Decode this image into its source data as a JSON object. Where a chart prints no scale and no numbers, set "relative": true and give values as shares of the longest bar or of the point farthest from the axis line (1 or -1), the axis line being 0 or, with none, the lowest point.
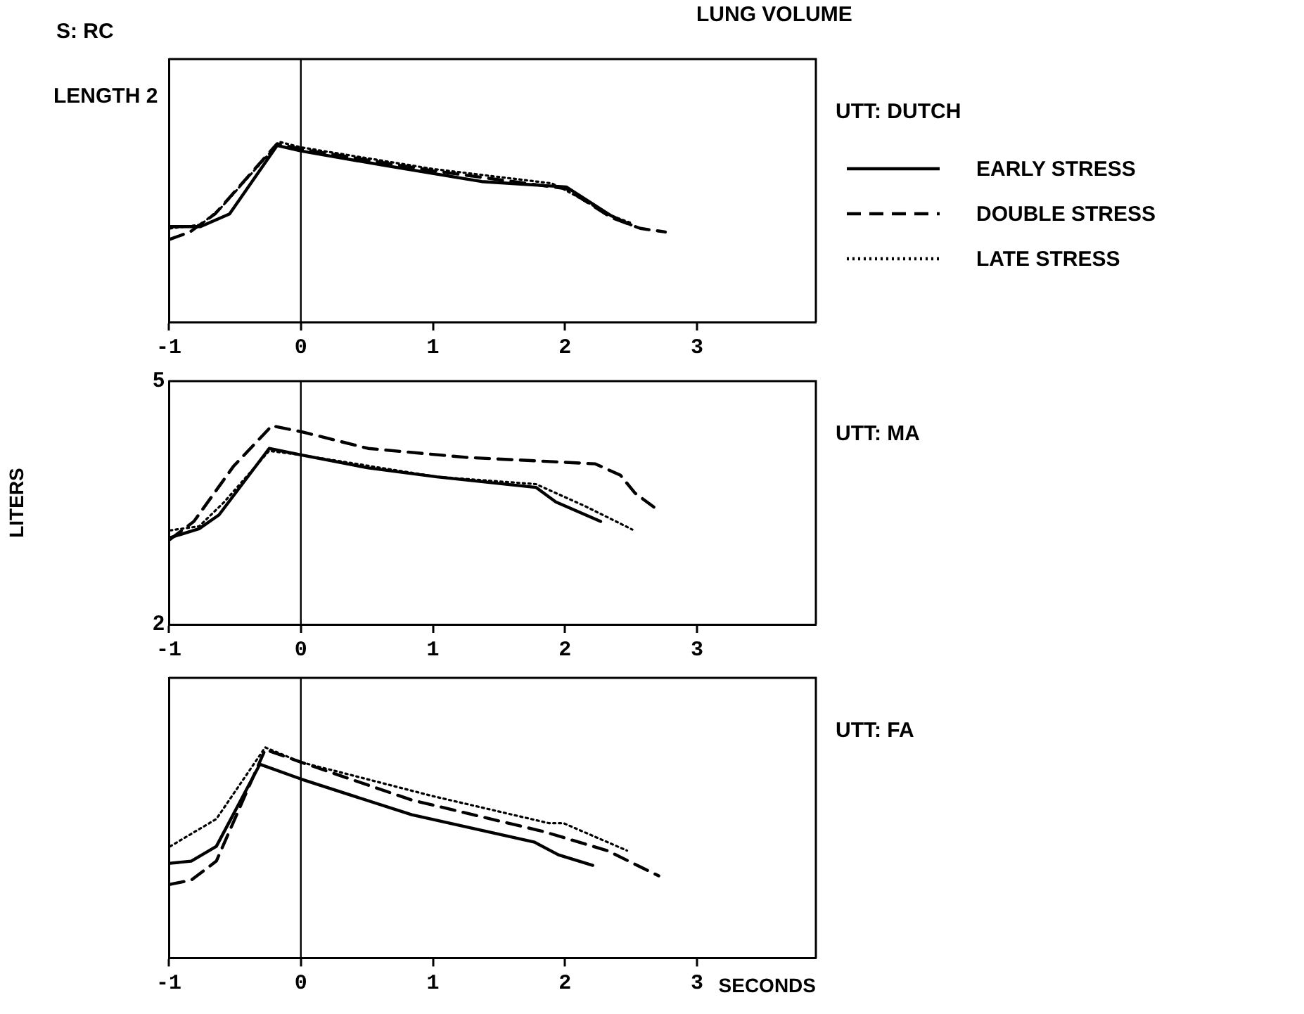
{
  "chart_data": [
    {
      "type": "line",
      "title": "LUNG VOLUME",
      "annotations": [
        "UTT: DUTCH",
        "S: RC",
        "LENGTH 2"
      ],
      "legend": "right",
      "relative": true,
      "xlim": [
        -1,
        3.9
      ],
      "xticks": [
        -1,
        0,
        1,
        2,
        3
      ],
      "ref_lines": [
        {
          "axis": "x",
          "value": 0
        }
      ],
      "series": [
        {
          "name": "EARLY STRESS",
          "color": "#000000",
          "line_style": "solid",
          "x": [
            -0.99,
            -0.76,
            -0.54,
            -0.18,
            0,
            0.63,
            1.37,
            2.01,
            2.35,
            2.5
          ],
          "values": [
            0.53,
            0.53,
            0.6,
            0.98,
            0.95,
            0.87,
            0.78,
            0.75,
            0.59,
            0.54
          ]
        },
        {
          "name": "DOUBLE STRESS",
          "color": "#000000",
          "line_style": "dashed",
          "x": [
            -0.99,
            -0.84,
            -0.65,
            -0.18,
            0,
            1.0,
            2.01,
            2.35,
            2.57,
            2.76
          ],
          "values": [
            0.46,
            0.5,
            0.6,
            0.99,
            0.96,
            0.84,
            0.74,
            0.58,
            0.52,
            0.5
          ]
        },
        {
          "name": "LATE STRESS",
          "color": "#000000",
          "line_style": "dotted",
          "x": [
            -0.99,
            -0.76,
            -0.61,
            -0.16,
            0,
            1.0,
            1.9,
            2.01,
            2.35,
            2.5
          ],
          "values": [
            0.52,
            0.54,
            0.63,
            1,
            0.97,
            0.85,
            0.77,
            0.73,
            0.59,
            0.55
          ]
        }
      ]
    },
    {
      "type": "line",
      "annotations": [
        "UTT: MA"
      ],
      "ylabel": "LITERS",
      "xlim": [
        -1,
        3.9
      ],
      "xticks": [
        -1,
        0,
        1,
        2,
        3
      ],
      "ylim": [
        2,
        5
      ],
      "yticks": [
        2,
        5
      ],
      "ref_lines": [
        {
          "axis": "x",
          "value": 0
        }
      ],
      "series": [
        {
          "color": "#000000",
          "line_style": "solid",
          "x": [
            -0.99,
            -0.77,
            -0.62,
            -0.24,
            0,
            0.51,
            1.03,
            1.78,
            1.93,
            2.27
          ],
          "values": [
            3.07,
            3.18,
            3.35,
            4.17,
            4.09,
            3.93,
            3.82,
            3.69,
            3.51,
            3.27
          ]
        },
        {
          "color": "#000000",
          "line_style": "dashed",
          "x": [
            -0.99,
            -0.81,
            -0.51,
            -0.22,
            0.02,
            0.51,
            1.25,
            2.23,
            2.42,
            2.53,
            2.72
          ],
          "values": [
            3.05,
            3.27,
            3.95,
            4.45,
            4.37,
            4.17,
            4.06,
            3.98,
            3.84,
            3.62,
            3.39
          ]
        },
        {
          "color": "#000000",
          "line_style": "dotted",
          "x": [
            -0.99,
            -0.77,
            -0.58,
            -0.24,
            0,
            1.03,
            1.78,
            2.15,
            2.51
          ],
          "values": [
            3.16,
            3.21,
            3.51,
            4.14,
            4.09,
            3.82,
            3.73,
            3.46,
            3.17
          ]
        }
      ]
    },
    {
      "type": "line",
      "annotations": [
        "UTT: FA"
      ],
      "xlabel": "SECONDS",
      "relative": true,
      "xlim": [
        -1,
        3.9
      ],
      "xticks": [
        -1,
        0,
        1,
        2,
        3
      ],
      "ref_lines": [
        {
          "axis": "x",
          "value": 0
        }
      ],
      "series": [
        {
          "color": "#000000",
          "line_style": "solid",
          "x": [
            -0.99,
            -0.83,
            -0.64,
            -0.31,
            0,
            0.84,
            1.77,
            1.95,
            2.21
          ],
          "values": [
            0.45,
            0.46,
            0.53,
            0.92,
            0.85,
            0.68,
            0.55,
            0.49,
            0.44
          ]
        },
        {
          "color": "#000000",
          "line_style": "dashed",
          "x": [
            -0.99,
            -0.83,
            -0.64,
            -0.27,
            0,
            0.84,
            1.84,
            2.32,
            2.71
          ],
          "values": [
            0.35,
            0.37,
            0.46,
            0.99,
            0.93,
            0.75,
            0.6,
            0.51,
            0.39
          ]
        },
        {
          "color": "#000000",
          "line_style": "dotted",
          "x": [
            -0.99,
            -0.64,
            -0.27,
            0,
            0.99,
            1.88,
            1.99,
            2.47
          ],
          "values": [
            0.53,
            0.66,
            1,
            0.93,
            0.77,
            0.64,
            0.64,
            0.51
          ]
        }
      ]
    }
  ]
}
